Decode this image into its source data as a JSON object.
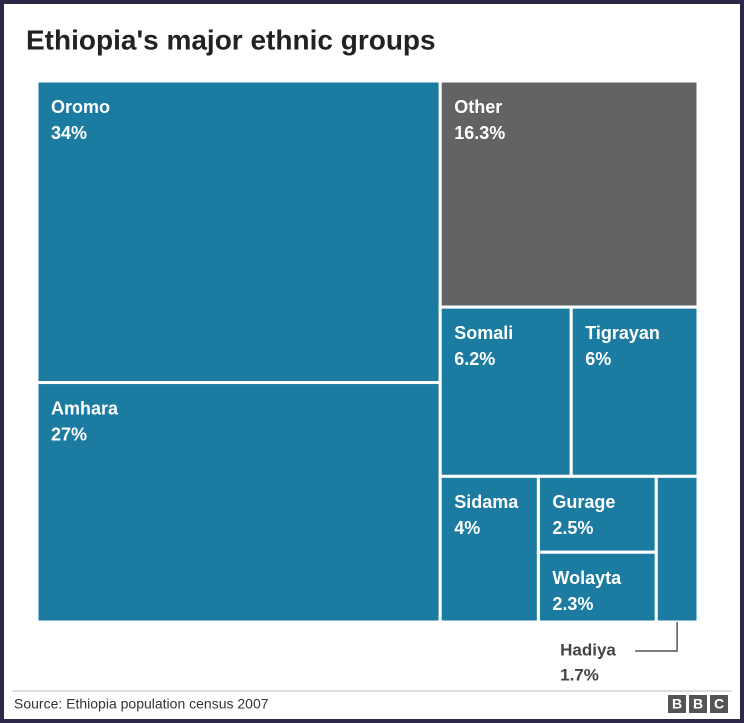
{
  "chart_data": {
    "type": "treemap",
    "title": "Ethiopia's major ethnic groups",
    "categories": [
      "Oromo",
      "Amhara",
      "Other",
      "Somali",
      "Tigrayan",
      "Sidama",
      "Gurage",
      "Wolayta",
      "Hadiya"
    ],
    "values": [
      34,
      27,
      16.3,
      6.2,
      6,
      4,
      2.5,
      2.3,
      1.7
    ],
    "value_labels": [
      "34%",
      "27%",
      "16.3%",
      "6.2%",
      "6%",
      "4%",
      "2.5%",
      "2.3%",
      "1.7%"
    ],
    "colors": [
      "#1b7ba0",
      "#1b7ba0",
      "#636363",
      "#1b7ba0",
      "#1b7ba0",
      "#1b7ba0",
      "#1b7ba0",
      "#1b7ba0",
      "#1b7ba0"
    ],
    "source": "Source: Ethiopia population census 2007",
    "logo": [
      "B",
      "B",
      "C"
    ]
  }
}
